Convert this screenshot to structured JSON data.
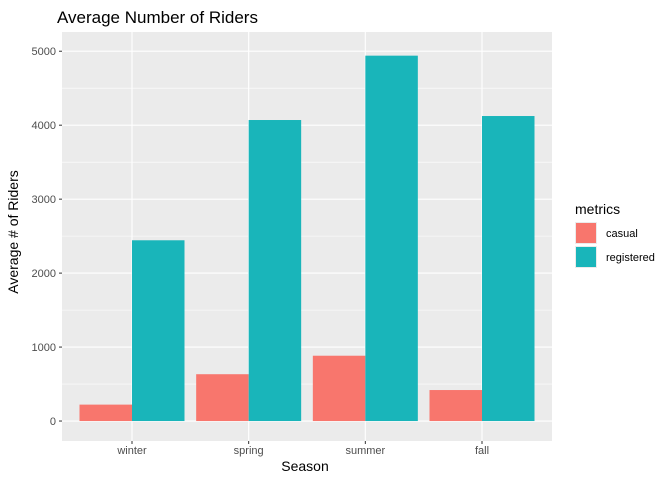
{
  "chart_data": {
    "type": "bar",
    "title": "Average Number of Riders",
    "xlabel": "Season",
    "ylabel": "Average # of Riders",
    "categories": [
      "winter",
      "spring",
      "summer",
      "fall"
    ],
    "series": [
      {
        "name": "casual",
        "values": [
          222,
          633,
          883,
          419
        ]
      },
      {
        "name": "registered",
        "values": [
          2444,
          4070,
          4940,
          4124
        ]
      }
    ],
    "ylim": [
      -270,
      5260
    ],
    "yticks": [
      0,
      1000,
      2000,
      3000,
      4000,
      5000
    ],
    "grid": true,
    "legend": {
      "title": "metrics",
      "placement": "right"
    },
    "colors": {
      "casual": "#F8766D",
      "registered": "#19B5BA",
      "panel": "#EBEBEB",
      "grid": "#ffffff"
    }
  }
}
